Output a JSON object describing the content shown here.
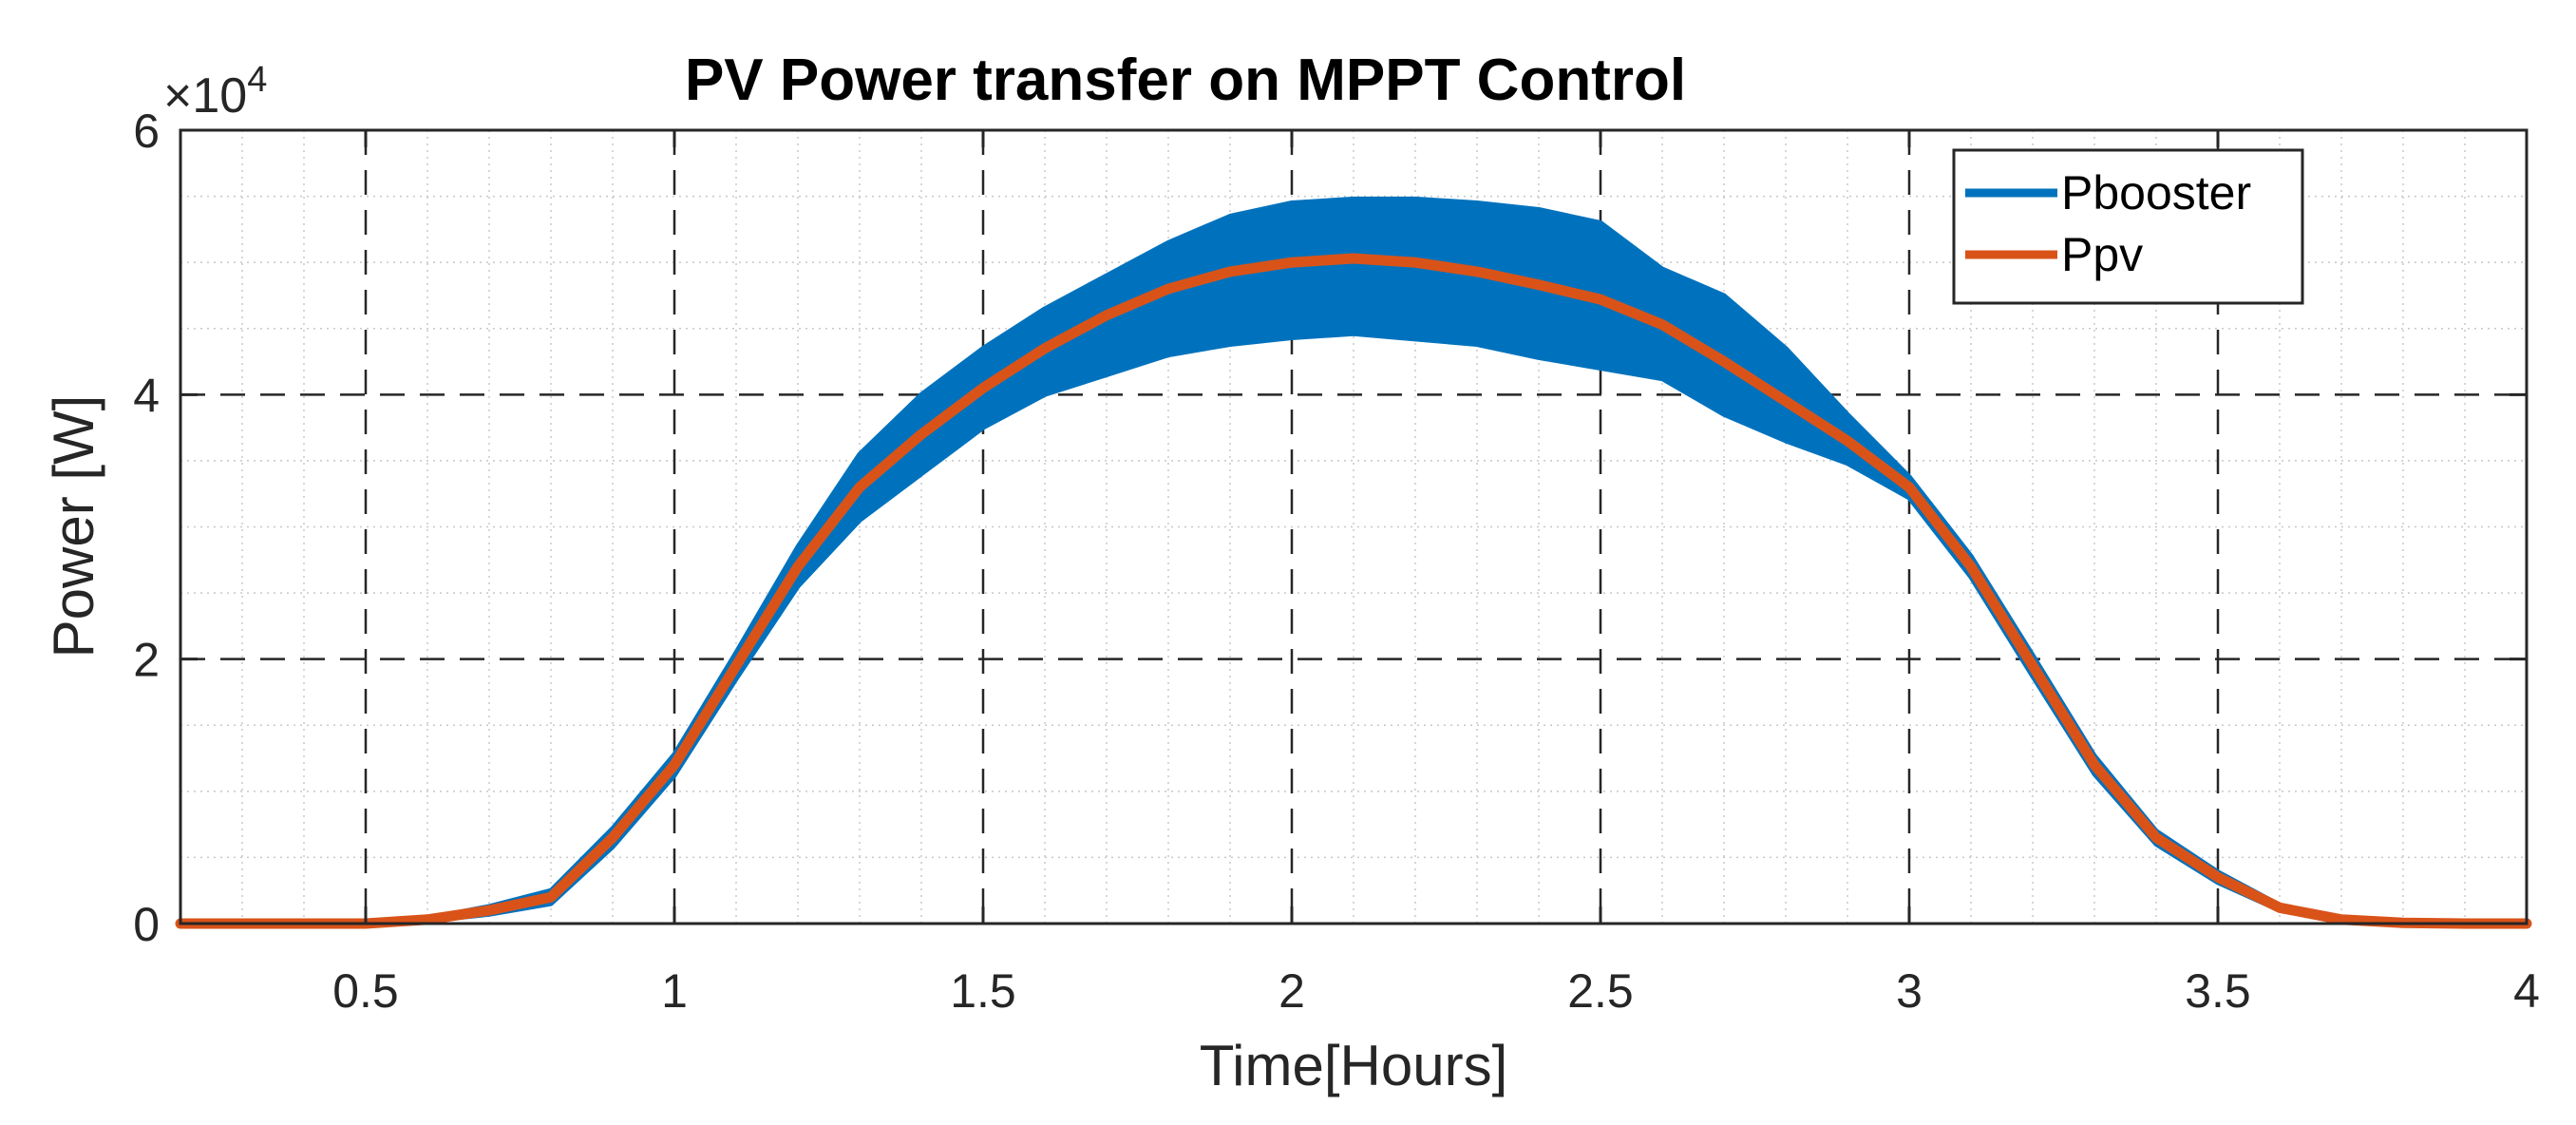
{
  "chart_data": {
    "type": "line",
    "title": "PV Power transfer on MPPT Control",
    "xlabel": "Time[Hours]",
    "ylabel": "Power [W]",
    "xlim": [
      0.2,
      4.0
    ],
    "ylim": [
      0,
      60000
    ],
    "x_ticks": [
      0.5,
      1,
      1.5,
      2,
      2.5,
      3,
      3.5,
      4
    ],
    "x_tick_labels": [
      "0.5",
      "1",
      "1.5",
      "2",
      "2.5",
      "3",
      "3.5",
      "4"
    ],
    "y_ticks": [
      0,
      20000,
      40000,
      60000
    ],
    "y_tick_labels": [
      "0",
      "2",
      "4",
      "6"
    ],
    "y_exponent_label": {
      "base": "×10",
      "power": "4"
    },
    "grid": {
      "major": true,
      "major_style": "dashed",
      "minor": true,
      "minor_style": "dotted"
    },
    "legend": {
      "location": "top-right",
      "entries": [
        "Pbooster",
        "Ppv"
      ]
    },
    "series": [
      {
        "name": "Ppv",
        "color": "#D95319",
        "x": [
          0.2,
          0.5,
          0.6,
          0.7,
          0.8,
          0.9,
          1.0,
          1.1,
          1.2,
          1.3,
          1.4,
          1.5,
          1.6,
          1.7,
          1.8,
          1.9,
          2.0,
          2.1,
          2.2,
          2.3,
          2.4,
          2.5,
          2.6,
          2.7,
          2.8,
          2.9,
          3.0,
          3.1,
          3.2,
          3.3,
          3.4,
          3.5,
          3.6,
          3.7,
          3.8,
          3.9,
          4.0
        ],
        "values": [
          0,
          0,
          300,
          1000,
          2000,
          6500,
          12000,
          19500,
          27000,
          33000,
          37000,
          40500,
          43500,
          46000,
          48000,
          49300,
          50000,
          50300,
          50000,
          49300,
          48300,
          47200,
          45300,
          42500,
          39500,
          36500,
          33000,
          27000,
          19500,
          12000,
          6500,
          3500,
          1200,
          300,
          50,
          0,
          0
        ]
      },
      {
        "name": "Pbooster",
        "color": "#0072BD",
        "x": [
          0.2,
          0.5,
          0.6,
          0.7,
          0.8,
          0.9,
          1.0,
          1.1,
          1.2,
          1.3,
          1.4,
          1.5,
          1.6,
          1.7,
          1.8,
          1.9,
          2.0,
          2.1,
          2.2,
          2.3,
          2.4,
          2.5,
          2.6,
          2.7,
          2.8,
          2.9,
          3.0,
          3.1,
          3.2,
          3.3,
          3.4,
          3.5,
          3.6,
          3.7,
          3.8,
          3.9,
          4.0
        ],
        "upper": [
          0,
          0,
          400,
          1300,
          2500,
          7200,
          12800,
          20500,
          28500,
          35500,
          40000,
          43500,
          46500,
          49000,
          51500,
          53500,
          54500,
          54800,
          54800,
          54500,
          54000,
          53000,
          49500,
          47500,
          43500,
          38500,
          33800,
          27800,
          20300,
          12700,
          7000,
          3900,
          1400,
          400,
          80,
          0,
          0
        ],
        "lower": [
          0,
          0,
          200,
          700,
          1500,
          5800,
          11200,
          18500,
          25500,
          30500,
          34000,
          37500,
          40000,
          41500,
          43000,
          43800,
          44300,
          44600,
          44200,
          43800,
          42800,
          42000,
          41200,
          38500,
          36500,
          34800,
          32200,
          26200,
          18700,
          11300,
          6000,
          3100,
          1000,
          200,
          20,
          0,
          0
        ]
      }
    ]
  }
}
